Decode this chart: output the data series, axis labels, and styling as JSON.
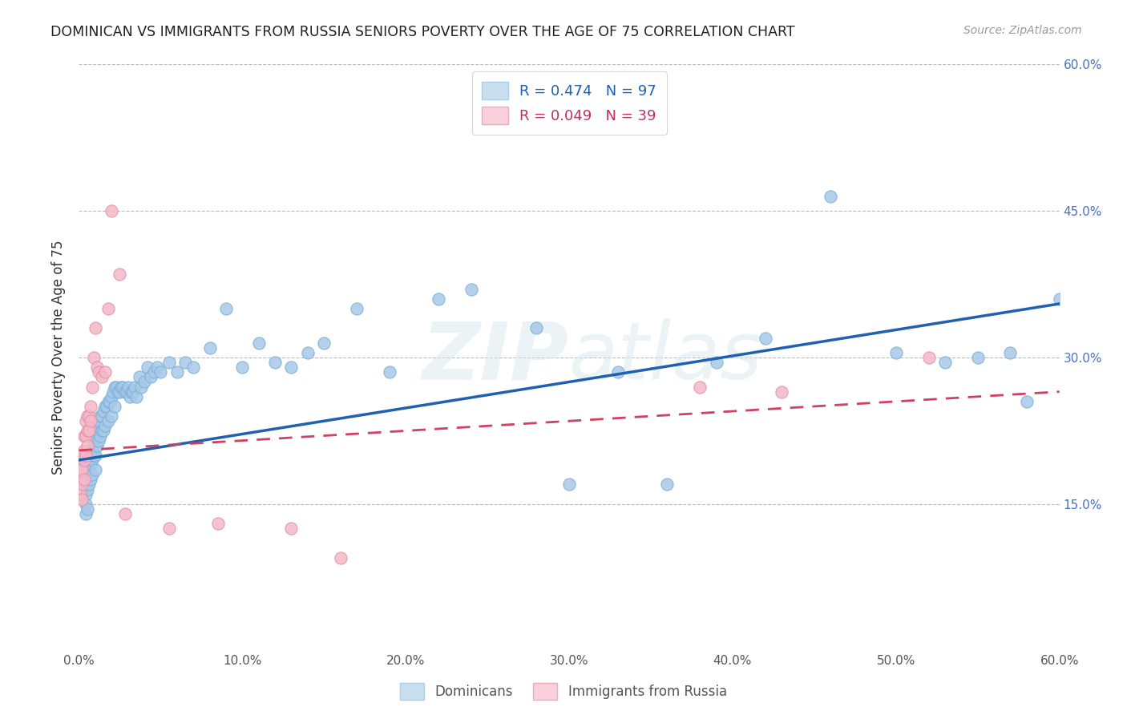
{
  "title": "DOMINICAN VS IMMIGRANTS FROM RUSSIA SENIORS POVERTY OVER THE AGE OF 75 CORRELATION CHART",
  "source": "Source: ZipAtlas.com",
  "ylabel": "Seniors Poverty Over the Age of 75",
  "xlim": [
    0.0,
    0.6
  ],
  "ylim": [
    0.0,
    0.6
  ],
  "dominican_color": "#a8c8e8",
  "russia_color": "#f4b8c8",
  "dominican_R": 0.474,
  "dominican_N": 97,
  "russia_R": 0.049,
  "russia_N": 39,
  "dominican_line_color": "#2060b0",
  "russia_line_color": "#d04060",
  "russia_line_style": "--",
  "watermark_text": "ZIPatlas",
  "legend_box_color_dom": "#c8dff0",
  "legend_box_color_rus": "#f9d0dc",
  "dom_line_y0": 0.195,
  "dom_line_y1": 0.355,
  "rus_line_y0": 0.205,
  "rus_line_y1": 0.265,
  "dominican_x": [
    0.002,
    0.003,
    0.003,
    0.004,
    0.004,
    0.004,
    0.005,
    0.005,
    0.005,
    0.005,
    0.005,
    0.006,
    0.006,
    0.006,
    0.007,
    0.007,
    0.007,
    0.008,
    0.008,
    0.008,
    0.009,
    0.009,
    0.01,
    0.01,
    0.01,
    0.01,
    0.011,
    0.011,
    0.012,
    0.012,
    0.013,
    0.013,
    0.014,
    0.014,
    0.015,
    0.015,
    0.016,
    0.016,
    0.017,
    0.018,
    0.018,
    0.019,
    0.02,
    0.02,
    0.021,
    0.022,
    0.022,
    0.023,
    0.024,
    0.025,
    0.026,
    0.027,
    0.028,
    0.029,
    0.03,
    0.031,
    0.032,
    0.033,
    0.034,
    0.035,
    0.037,
    0.038,
    0.04,
    0.042,
    0.044,
    0.046,
    0.048,
    0.05,
    0.055,
    0.06,
    0.065,
    0.07,
    0.08,
    0.09,
    0.1,
    0.11,
    0.12,
    0.13,
    0.14,
    0.15,
    0.17,
    0.19,
    0.22,
    0.24,
    0.28,
    0.3,
    0.33,
    0.36,
    0.39,
    0.42,
    0.46,
    0.5,
    0.53,
    0.55,
    0.57,
    0.58,
    0.6
  ],
  "dominican_y": [
    0.195,
    0.185,
    0.17,
    0.16,
    0.15,
    0.14,
    0.195,
    0.185,
    0.175,
    0.165,
    0.145,
    0.195,
    0.185,
    0.17,
    0.2,
    0.19,
    0.175,
    0.205,
    0.195,
    0.18,
    0.215,
    0.2,
    0.225,
    0.215,
    0.2,
    0.185,
    0.23,
    0.21,
    0.235,
    0.215,
    0.24,
    0.22,
    0.24,
    0.225,
    0.245,
    0.225,
    0.25,
    0.23,
    0.25,
    0.255,
    0.235,
    0.255,
    0.26,
    0.24,
    0.265,
    0.27,
    0.25,
    0.27,
    0.265,
    0.265,
    0.27,
    0.27,
    0.265,
    0.265,
    0.27,
    0.26,
    0.265,
    0.265,
    0.27,
    0.26,
    0.28,
    0.27,
    0.275,
    0.29,
    0.28,
    0.285,
    0.29,
    0.285,
    0.295,
    0.285,
    0.295,
    0.29,
    0.31,
    0.35,
    0.29,
    0.315,
    0.295,
    0.29,
    0.305,
    0.315,
    0.35,
    0.285,
    0.36,
    0.37,
    0.33,
    0.17,
    0.285,
    0.17,
    0.295,
    0.32,
    0.465,
    0.305,
    0.295,
    0.3,
    0.305,
    0.255,
    0.36
  ],
  "russia_x": [
    0.001,
    0.001,
    0.001,
    0.002,
    0.002,
    0.002,
    0.002,
    0.003,
    0.003,
    0.003,
    0.003,
    0.004,
    0.004,
    0.004,
    0.005,
    0.005,
    0.005,
    0.006,
    0.006,
    0.007,
    0.007,
    0.008,
    0.009,
    0.01,
    0.011,
    0.012,
    0.014,
    0.016,
    0.018,
    0.02,
    0.025,
    0.028,
    0.055,
    0.085,
    0.13,
    0.16,
    0.38,
    0.43,
    0.52
  ],
  "russia_y": [
    0.185,
    0.175,
    0.16,
    0.2,
    0.185,
    0.17,
    0.155,
    0.22,
    0.205,
    0.195,
    0.175,
    0.235,
    0.22,
    0.2,
    0.24,
    0.225,
    0.21,
    0.24,
    0.225,
    0.25,
    0.235,
    0.27,
    0.3,
    0.33,
    0.29,
    0.285,
    0.28,
    0.285,
    0.35,
    0.45,
    0.385,
    0.14,
    0.125,
    0.13,
    0.125,
    0.095,
    0.27,
    0.265,
    0.3
  ]
}
